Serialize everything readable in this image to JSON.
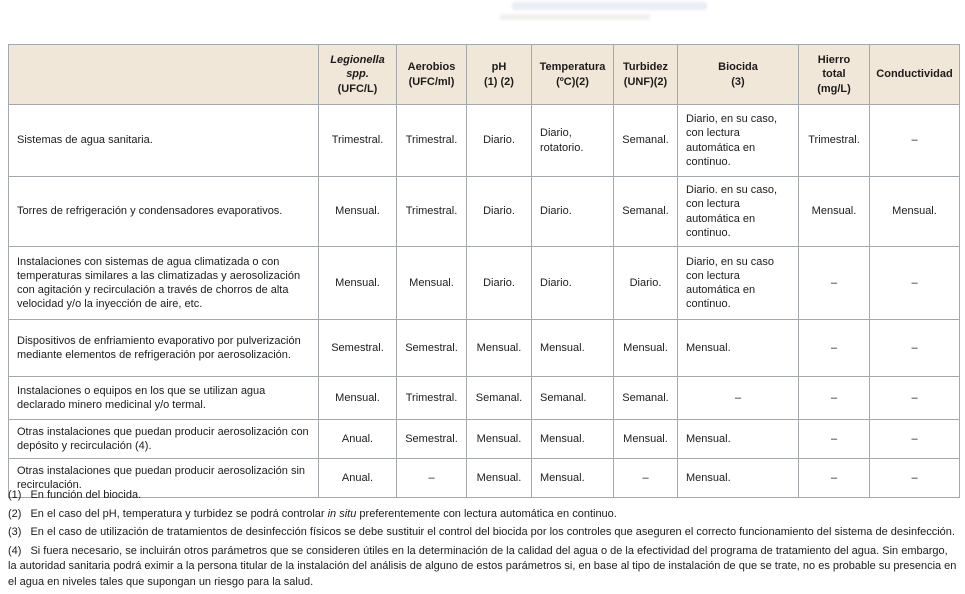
{
  "colors": {
    "header_bg": "#f1e7d8",
    "border": "#a3a8ad",
    "text": "#1c1c1c"
  },
  "table": {
    "header": [
      {
        "lines": [
          "Legionella",
          "spp.",
          "(UFC/L)"
        ],
        "italic_lines": 2
      },
      {
        "lines": [
          "Aerobios",
          "(UFC/ml)"
        ],
        "italic_lines": 0
      },
      {
        "lines": [
          "pH",
          "(1) (2)"
        ],
        "italic_lines": 0
      },
      {
        "lines": [
          "Temperatura",
          "(ºC)(2)"
        ],
        "italic_lines": 0
      },
      {
        "lines": [
          "Turbidez",
          "(UNF)(2)"
        ],
        "italic_lines": 0
      },
      {
        "lines": [
          "Biocida",
          "(3)"
        ],
        "italic_lines": 0
      },
      {
        "lines": [
          "Hierro",
          "total",
          "(mg/L)"
        ],
        "italic_lines": 0
      },
      {
        "lines": [
          "Conductividad"
        ],
        "italic_lines": 0
      }
    ],
    "rows": [
      {
        "label": "Sistemas de agua sanitaria.",
        "cells": [
          "Trimestral.",
          "Trimestral.",
          "Diario.",
          "Diario, rotatorio.",
          "Semanal.",
          "Diario, en su caso, con lectura automática en continuo.",
          "Trimestral.",
          "–"
        ]
      },
      {
        "label": "Torres de refrigeración y condensadores evaporativos.",
        "cells": [
          "Mensual.",
          "Trimestral.",
          "Diario.",
          "Diario.",
          "Semanal.",
          "Diario. en su caso, con lectura automática en continuo.",
          "Mensual.",
          "Mensual."
        ]
      },
      {
        "label": "Instalaciones con sistemas de agua climatizada o con temperaturas similares a las climatizadas y aerosolización con agitación y recirculación a través de chorros de alta velocidad y/o la inyección de aire, etc.",
        "cells": [
          "Mensual.",
          "Mensual.",
          "Diario.",
          "Diario.",
          "Diario.",
          "Diario, en su caso con lectura automática en continuo.",
          "–",
          "–"
        ]
      },
      {
        "label": "Dispositivos de enfriamiento evaporativo por pulverización mediante elementos de refrigeración por aerosolización.",
        "cells": [
          "Semestral.",
          "Semestral.",
          "Mensual.",
          "Mensual.",
          "Mensual.",
          "Mensual.",
          "–",
          "–"
        ]
      },
      {
        "label": "Instalaciones o equipos en los que se utilizan agua declarado minero medicinal y/o termal.",
        "cells": [
          "Mensual.",
          "Trimestral.",
          "Semanal.",
          "Semanal.",
          "Semanal.",
          "–",
          "–",
          "–"
        ]
      },
      {
        "label": "Otras instalaciones que puedan producir aerosolización con depósito y recirculación (4).",
        "cells": [
          "Anual.",
          "Semestral.",
          "Mensual.",
          "Mensual.",
          "Mensual.",
          "Mensual.",
          "–",
          "–"
        ]
      },
      {
        "label": "Otras instalaciones que puedan producir aerosolización sin recirculación.",
        "cells": [
          "Anual.",
          "–",
          "Mensual.",
          "Mensual.",
          "–",
          "Mensual.",
          "–",
          "–"
        ]
      }
    ]
  },
  "footnotes": [
    {
      "num": "(1)",
      "segments": [
        {
          "text": "En función del biocida.",
          "italic": false
        }
      ]
    },
    {
      "num": "(2)",
      "segments": [
        {
          "text": "En el caso del pH, temperatura y turbidez se podrá controlar ",
          "italic": false
        },
        {
          "text": "in situ",
          "italic": true
        },
        {
          "text": " preferentemente con lectura automática en continuo.",
          "italic": false
        }
      ]
    },
    {
      "num": "(3)",
      "segments": [
        {
          "text": "En el caso de utilización de tratamientos de desinfección físicos se debe sustituir el control del biocida por los controles que aseguren el correcto funcionamiento del sistema de desinfección.",
          "italic": false
        }
      ]
    },
    {
      "num": "(4)",
      "segments": [
        {
          "text": "Si fuera necesario, se incluirán otros parámetros que se consideren útiles en la determinación de la calidad del agua o de la efectividad del programa de tratamiento del agua. Sin embargo, la autoridad sanitaria podrá eximir a la persona titular de la instalación del análisis de alguno de estos parámetros si, en base al tipo de instalación de que se trate, no es probable su presencia en el agua en niveles tales que supongan un riesgo para la salud.",
          "italic": false
        }
      ]
    }
  ]
}
